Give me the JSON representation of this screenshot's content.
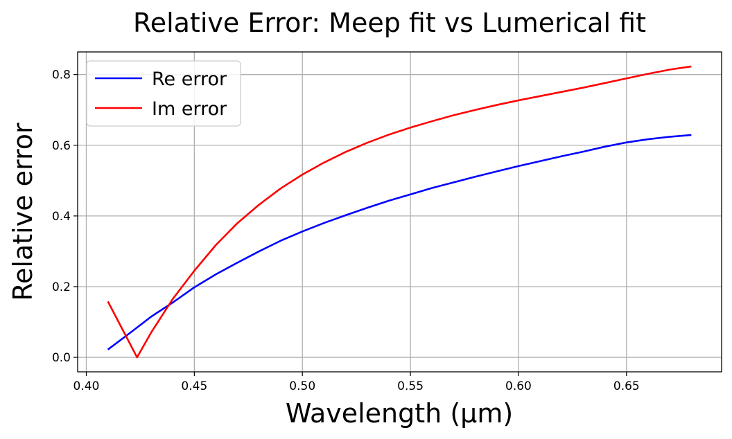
{
  "chart_data": {
    "type": "line",
    "title": "Relative Error: Meep fit vs Lumerical fit",
    "xlabel": "Wavelength (µm)",
    "ylabel": "Relative error",
    "xlim": [
      0.396,
      0.694
    ],
    "ylim": [
      -0.041,
      0.864
    ],
    "xticks": [
      0.4,
      0.45,
      0.5,
      0.55,
      0.6,
      0.65
    ],
    "xtick_labels": [
      "0.40",
      "0.45",
      "0.50",
      "0.55",
      "0.60",
      "0.65"
    ],
    "yticks": [
      0.0,
      0.2,
      0.4,
      0.6,
      0.8
    ],
    "ytick_labels": [
      "0.0",
      "0.2",
      "0.4",
      "0.6",
      "0.8"
    ],
    "grid": true,
    "legend_position": "top-left",
    "series": [
      {
        "name": "Re error",
        "color": "#0000ff",
        "x": [
          0.41,
          0.42,
          0.43,
          0.44,
          0.45,
          0.46,
          0.47,
          0.48,
          0.49,
          0.5,
          0.51,
          0.52,
          0.53,
          0.54,
          0.55,
          0.56,
          0.57,
          0.58,
          0.59,
          0.6,
          0.61,
          0.62,
          0.63,
          0.64,
          0.65,
          0.66,
          0.67,
          0.68
        ],
        "y": [
          0.022,
          0.068,
          0.115,
          0.155,
          0.198,
          0.235,
          0.268,
          0.3,
          0.33,
          0.356,
          0.38,
          0.402,
          0.423,
          0.443,
          0.461,
          0.479,
          0.495,
          0.511,
          0.526,
          0.541,
          0.555,
          0.569,
          0.582,
          0.596,
          0.608,
          0.617,
          0.624,
          0.629
        ]
      },
      {
        "name": "Im error",
        "color": "#ff0000",
        "x": [
          0.41,
          0.4235,
          0.43,
          0.44,
          0.45,
          0.46,
          0.47,
          0.48,
          0.49,
          0.5,
          0.51,
          0.52,
          0.53,
          0.54,
          0.55,
          0.56,
          0.57,
          0.58,
          0.59,
          0.6,
          0.61,
          0.62,
          0.63,
          0.64,
          0.65,
          0.66,
          0.67,
          0.68
        ],
        "y": [
          0.158,
          0.0,
          0.07,
          0.165,
          0.245,
          0.318,
          0.38,
          0.432,
          0.478,
          0.517,
          0.551,
          0.581,
          0.607,
          0.63,
          0.65,
          0.668,
          0.685,
          0.7,
          0.714,
          0.727,
          0.739,
          0.751,
          0.763,
          0.776,
          0.789,
          0.802,
          0.814,
          0.823
        ]
      }
    ]
  }
}
